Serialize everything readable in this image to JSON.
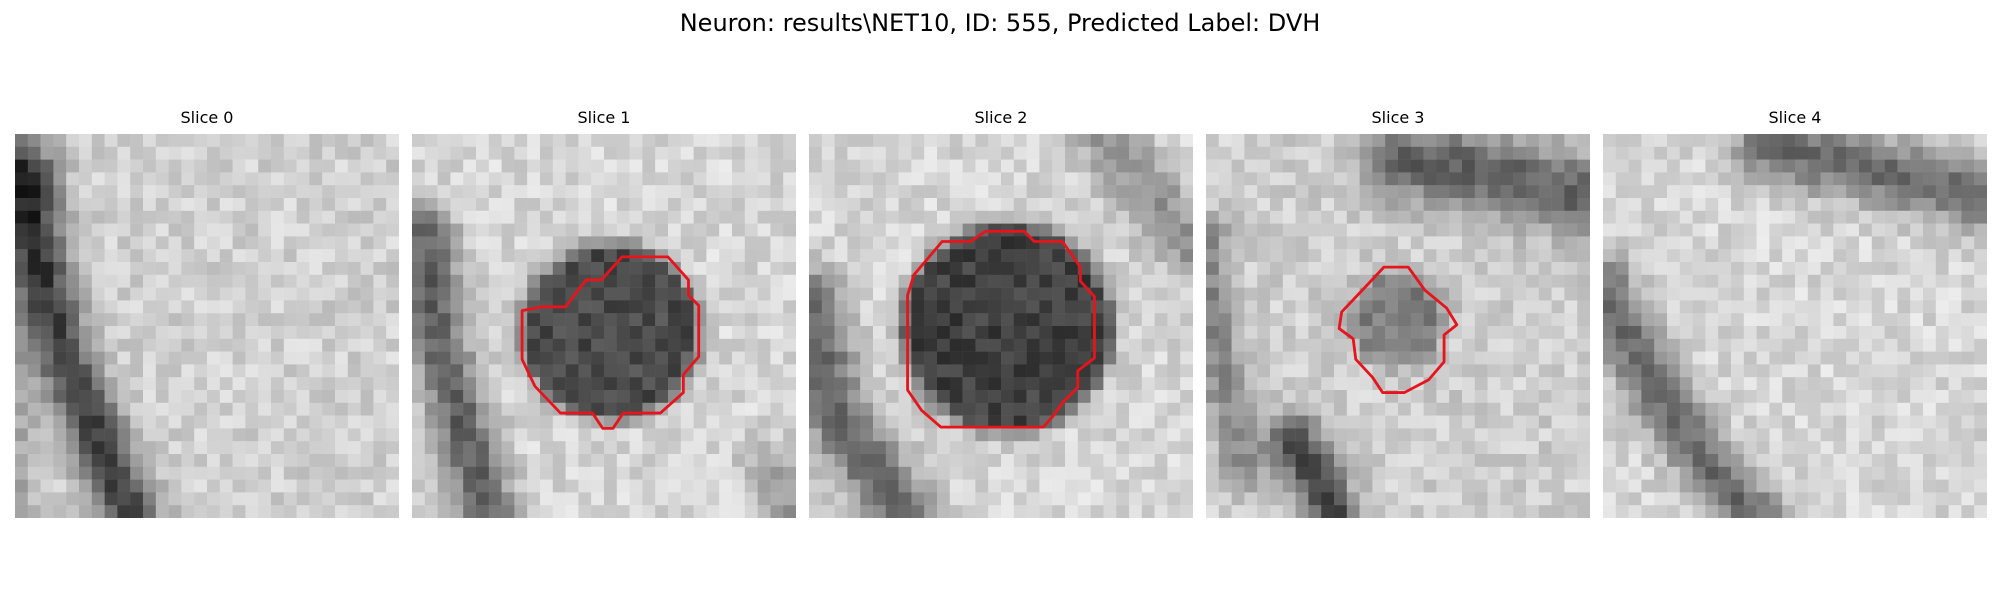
{
  "figure": {
    "title": "Neuron: results\\NET10, ID: 555, Predicted Label: DVH"
  },
  "colors": {
    "contour": "#e8141c",
    "grayscale_dark": "#0a0a0a",
    "grayscale_light": "#ececec"
  },
  "panels": [
    {
      "title": "Slice 0",
      "has_contour": false
    },
    {
      "title": "Slice 1",
      "has_contour": true
    },
    {
      "title": "Slice 2",
      "has_contour": true
    },
    {
      "title": "Slice 3",
      "has_contour": true
    },
    {
      "title": "Slice 4",
      "has_contour": false
    }
  ]
}
